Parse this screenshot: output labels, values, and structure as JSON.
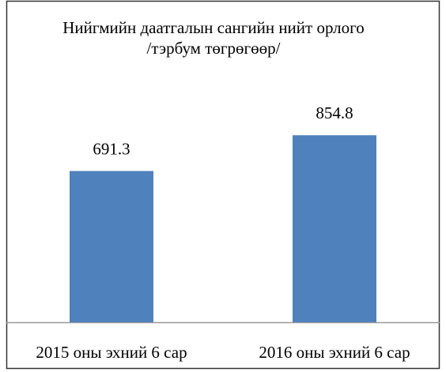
{
  "chart_data": {
    "type": "bar",
    "title": "Нийгмийн даатгалын сангийн нийт орлого",
    "subtitle": "/тэрбум төгрөгөөр/",
    "categories": [
      "2015 оны эхний 6 сар",
      "2016 оны эхний 6 сар"
    ],
    "values": [
      691.3,
      854.8
    ],
    "color": "#4f81bd",
    "ylim": [
      0,
      1000
    ]
  }
}
